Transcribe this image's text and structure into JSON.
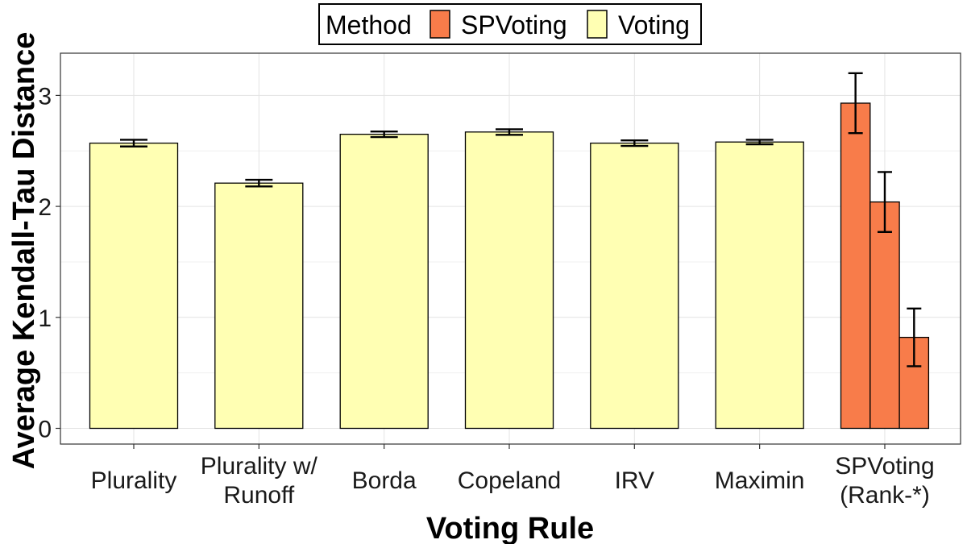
{
  "chart_data": {
    "type": "bar",
    "xlabel": "Voting Rule",
    "ylabel": "Average Kendall-Tau Distance",
    "ylim": [
      -0.15,
      3.36
    ],
    "yticks": [
      0,
      1,
      2,
      3
    ],
    "grid": true,
    "legend": {
      "title": "Method",
      "placement": "top",
      "entries": [
        {
          "label": "SPVoting",
          "color": "#F87C4A"
        },
        {
          "label": "Voting",
          "color": "#FFFFB3"
        }
      ]
    },
    "categories": [
      {
        "label_lines": [
          "Plurality"
        ]
      },
      {
        "label_lines": [
          "Plurality w/",
          "Runoff"
        ]
      },
      {
        "label_lines": [
          "Borda"
        ]
      },
      {
        "label_lines": [
          "Copeland"
        ]
      },
      {
        "label_lines": [
          "IRV"
        ]
      },
      {
        "label_lines": [
          "Maximin"
        ]
      },
      {
        "label_lines": [
          "SPVoting",
          "(Rank-*)"
        ]
      }
    ],
    "bars": [
      {
        "category": 0,
        "method": "Voting",
        "value": 2.57,
        "err": 0.03
      },
      {
        "category": 1,
        "method": "Voting",
        "value": 2.21,
        "err": 0.03
      },
      {
        "category": 2,
        "method": "Voting",
        "value": 2.65,
        "err": 0.025
      },
      {
        "category": 3,
        "method": "Voting",
        "value": 2.67,
        "err": 0.025
      },
      {
        "category": 4,
        "method": "Voting",
        "value": 2.57,
        "err": 0.025
      },
      {
        "category": 5,
        "method": "Voting",
        "value": 2.58,
        "err": 0.02
      },
      {
        "category": 6,
        "method": "SPVoting",
        "value": 2.93,
        "err": 0.27
      },
      {
        "category": 6,
        "method": "SPVoting",
        "value": 2.04,
        "err": 0.27
      },
      {
        "category": 6,
        "method": "SPVoting",
        "value": 0.82,
        "err": 0.26
      }
    ]
  }
}
